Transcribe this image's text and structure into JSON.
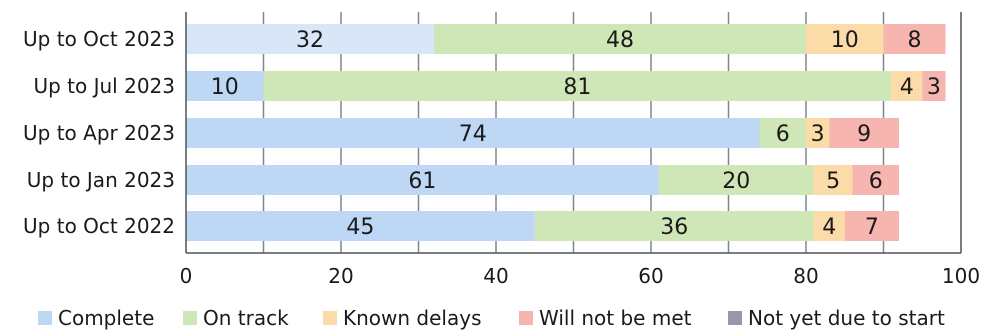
{
  "chart_data": {
    "type": "bar",
    "orientation": "horizontal",
    "stacked": true,
    "categories": [
      "Up to Oct 2023",
      "Up to Jul 2023",
      "Up to Apr 2023",
      "Up to Jan 2023",
      "Up to Oct 2022"
    ],
    "series": [
      {
        "name": "Complete",
        "color": "#bdd7f5",
        "values": [
          32,
          10,
          74,
          61,
          45
        ]
      },
      {
        "name": "On track",
        "color": "#cfe6b6",
        "values": [
          48,
          81,
          6,
          20,
          36
        ]
      },
      {
        "name": "Known delays",
        "color": "#fbdca8",
        "values": [
          10,
          4,
          3,
          5,
          4
        ]
      },
      {
        "name": "Will not be met",
        "color": "#f6b5ae",
        "values": [
          8,
          3,
          9,
          6,
          7
        ]
      },
      {
        "name": "Not yet due to start",
        "color": "#9a98a8",
        "values": [
          0,
          0,
          0,
          0,
          0
        ]
      }
    ],
    "highlight": {
      "category": "Up to Oct 2023",
      "series": "Complete",
      "color": "#d9e6f7"
    },
    "xlim": [
      0,
      100
    ],
    "xticks": [
      0,
      20,
      40,
      60,
      80,
      100
    ],
    "grid": true,
    "legend_position": "bottom"
  }
}
